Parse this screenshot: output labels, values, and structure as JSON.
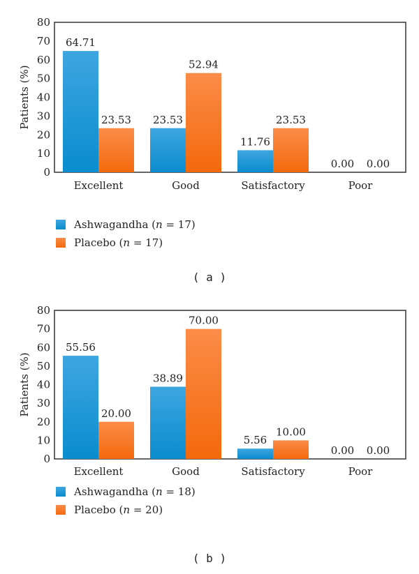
{
  "colors": {
    "ashwagandha": "#1a96d6",
    "placebo": "#f7762a"
  },
  "chart_data": [
    {
      "type": "bar",
      "panel": "( a )",
      "ylabel": "Patients (%)",
      "ylim": [
        0,
        80
      ],
      "yticks": [
        0,
        10,
        20,
        30,
        40,
        50,
        60,
        70,
        80
      ],
      "categories": [
        "Excellent",
        "Good",
        "Satisfactory",
        "Poor"
      ],
      "series": [
        {
          "name": "Ashwagandha",
          "n": "17",
          "values": [
            64.71,
            23.53,
            11.76,
            0.0
          ]
        },
        {
          "name": "Placebo",
          "n": "17",
          "values": [
            23.53,
            52.94,
            23.53,
            0.0
          ]
        }
      ],
      "legend": "bottom-left"
    },
    {
      "type": "bar",
      "panel": "( b )",
      "ylabel": "Patients (%)",
      "ylim": [
        0,
        80
      ],
      "yticks": [
        0,
        10,
        20,
        30,
        40,
        50,
        60,
        70,
        80
      ],
      "categories": [
        "Excellent",
        "Good",
        "Satisfactory",
        "Poor"
      ],
      "series": [
        {
          "name": "Ashwagandha",
          "n": "18",
          "values": [
            55.56,
            38.89,
            5.56,
            0.0
          ]
        },
        {
          "name": "Placebo",
          "n": "20",
          "values": [
            20.0,
            70.0,
            10.0,
            0.0
          ]
        }
      ],
      "legend": "bottom-left"
    }
  ]
}
